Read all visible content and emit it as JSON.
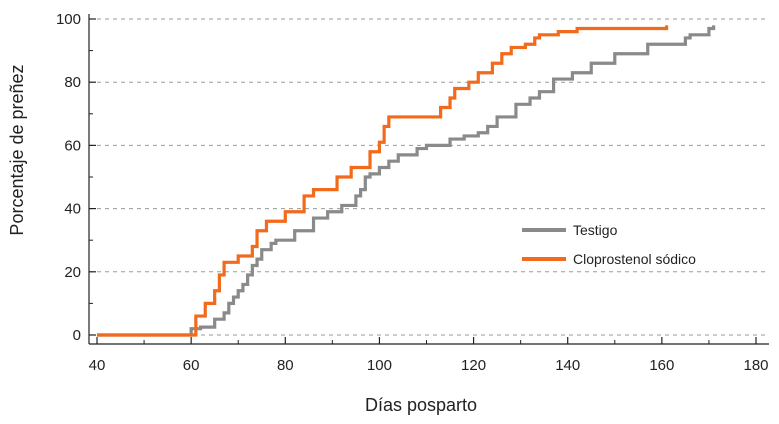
{
  "chart_data": {
    "type": "line",
    "title": "",
    "xlabel": "Días posparto",
    "ylabel": "Porcentaje de preñez",
    "xlim": [
      40,
      180
    ],
    "ylim": [
      0,
      100
    ],
    "x_ticks": [
      40,
      60,
      80,
      100,
      120,
      140,
      160,
      180
    ],
    "y_ticks": [
      0,
      20,
      40,
      60,
      80,
      100
    ],
    "grid": "horizontal dashed",
    "legend_position": "center-right",
    "step": true,
    "series": [
      {
        "name": "Testigo",
        "color": "#8a8a8a",
        "x": [
          60,
          62,
          65,
          67,
          68,
          69,
          70,
          71,
          72,
          73,
          74,
          75,
          77,
          78,
          82,
          86,
          89,
          92,
          95,
          96,
          97,
          98,
          100,
          102,
          104,
          108,
          110,
          115,
          118,
          121,
          123,
          125,
          129,
          132,
          134,
          137,
          141,
          145,
          150,
          157,
          165,
          166,
          170,
          171
        ],
        "y": [
          2,
          2.5,
          5,
          7,
          10,
          12,
          14,
          16,
          19,
          22,
          24,
          27,
          29,
          30,
          33,
          37,
          39,
          41,
          44,
          46,
          50,
          51,
          53,
          55,
          57,
          59,
          60,
          62,
          63,
          64,
          66,
          69,
          73,
          75,
          77,
          81,
          83,
          86,
          89,
          92,
          94,
          95,
          97,
          98
        ],
        "start": [
          40,
          0
        ]
      },
      {
        "name": "Cloprostenol sódico",
        "color": "#f26a1b",
        "x": [
          59,
          61,
          63,
          65,
          66,
          67,
          70,
          73,
          74,
          76,
          80,
          84,
          86,
          91,
          94,
          98,
          100,
          101,
          102,
          113,
          115,
          116,
          119,
          121,
          124,
          126,
          128,
          131,
          133,
          134,
          138,
          142,
          144,
          152,
          160,
          161
        ],
        "y": [
          0,
          6,
          10,
          14,
          19,
          23,
          25,
          28,
          33,
          36,
          39,
          44,
          46,
          50,
          53,
          58,
          61,
          66,
          69,
          72,
          75,
          78,
          80,
          83,
          86,
          89,
          91,
          92,
          94,
          95,
          96,
          97,
          97,
          97,
          97,
          98
        ],
        "start": [
          40,
          0
        ]
      }
    ]
  }
}
